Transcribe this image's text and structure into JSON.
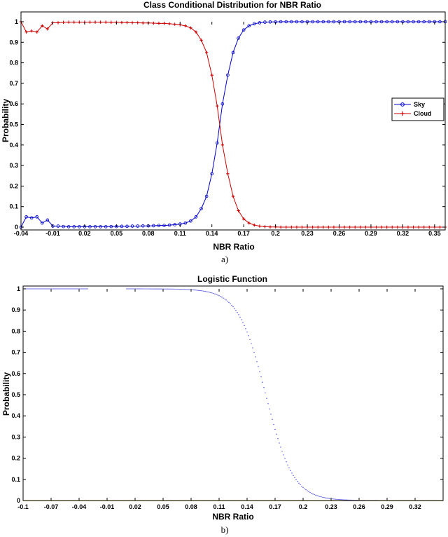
{
  "chart_data": [
    {
      "type": "line",
      "title": "Class Conditional Distribution for NBR Ratio",
      "xlabel": "NBR Ratio",
      "ylabel": "Probability",
      "caption": "a)",
      "xlim": [
        -0.04,
        0.36
      ],
      "ylim": [
        0,
        1
      ],
      "xticks": [
        -0.04,
        -0.01,
        0.02,
        0.05,
        0.08,
        0.11,
        0.14,
        0.17,
        0.2,
        0.23,
        0.26,
        0.29,
        0.32,
        0.35
      ],
      "xtick_labels": [
        "-0.04",
        "-0.01",
        "0.02",
        "0.05",
        "0.08",
        "0.11",
        "0.14",
        "0.17",
        "0.2",
        "0.23",
        "0.26",
        "0.29",
        "0.32",
        "0.35"
      ],
      "yticks": [
        0,
        0.1,
        0.2,
        0.3,
        0.4,
        0.5,
        0.6,
        0.7,
        0.8,
        0.9,
        1
      ],
      "ytick_labels": [
        "0",
        "0.1",
        "0.2",
        "0.3",
        "0.4",
        "0.5",
        "0.6",
        "0.7",
        "0.8",
        "0.9",
        "1"
      ],
      "grid": false,
      "legend_position": "right",
      "series": [
        {
          "name": "Sky",
          "color": "#0000cc",
          "marker": "circle",
          "x": [
            -0.04,
            -0.035,
            -0.03,
            -0.025,
            -0.02,
            -0.015,
            -0.01,
            -0.005,
            0,
            0.005,
            0.01,
            0.015,
            0.02,
            0.025,
            0.03,
            0.035,
            0.04,
            0.045,
            0.05,
            0.055,
            0.06,
            0.065,
            0.07,
            0.075,
            0.08,
            0.085,
            0.09,
            0.095,
            0.1,
            0.105,
            0.11,
            0.115,
            0.12,
            0.125,
            0.13,
            0.135,
            0.14,
            0.145,
            0.15,
            0.155,
            0.16,
            0.165,
            0.17,
            0.175,
            0.18,
            0.185,
            0.19,
            0.195,
            0.2,
            0.205,
            0.21,
            0.215,
            0.22,
            0.225,
            0.23,
            0.235,
            0.24,
            0.245,
            0.25,
            0.255,
            0.26,
            0.265,
            0.27,
            0.275,
            0.28,
            0.285,
            0.29,
            0.295,
            0.3,
            0.305,
            0.31,
            0.315,
            0.32,
            0.325,
            0.33,
            0.335,
            0.34,
            0.345,
            0.35,
            0.355,
            0.36
          ],
          "y": [
            0.0,
            0.05,
            0.045,
            0.05,
            0.02,
            0.035,
            0.005,
            0.005,
            0.003,
            0.002,
            0.002,
            0.002,
            0.002,
            0.002,
            0.002,
            0.002,
            0.002,
            0.003,
            0.003,
            0.004,
            0.004,
            0.005,
            0.005,
            0.006,
            0.006,
            0.007,
            0.008,
            0.008,
            0.01,
            0.012,
            0.015,
            0.02,
            0.03,
            0.05,
            0.09,
            0.15,
            0.26,
            0.41,
            0.6,
            0.74,
            0.85,
            0.92,
            0.96,
            0.98,
            0.99,
            0.995,
            0.998,
            0.999,
            0.999,
            1,
            1,
            1,
            1,
            1,
            1,
            1,
            1,
            1,
            1,
            1,
            1,
            1,
            1,
            1,
            1,
            1,
            1,
            1,
            1,
            1,
            1,
            1,
            1,
            1,
            1,
            1,
            1,
            1,
            1,
            1,
            1
          ]
        },
        {
          "name": "Cloud",
          "color": "#cc0000",
          "marker": "plus",
          "x": [
            -0.04,
            -0.035,
            -0.03,
            -0.025,
            -0.02,
            -0.015,
            -0.01,
            -0.005,
            0,
            0.005,
            0.01,
            0.015,
            0.02,
            0.025,
            0.03,
            0.035,
            0.04,
            0.045,
            0.05,
            0.055,
            0.06,
            0.065,
            0.07,
            0.075,
            0.08,
            0.085,
            0.09,
            0.095,
            0.1,
            0.105,
            0.11,
            0.115,
            0.12,
            0.125,
            0.13,
            0.135,
            0.14,
            0.145,
            0.15,
            0.155,
            0.16,
            0.165,
            0.17,
            0.175,
            0.18,
            0.185,
            0.19,
            0.195,
            0.2,
            0.205,
            0.21,
            0.215,
            0.22,
            0.225,
            0.23,
            0.235,
            0.24,
            0.245,
            0.25,
            0.255,
            0.26,
            0.265,
            0.27,
            0.275,
            0.28,
            0.285,
            0.29,
            0.295,
            0.3,
            0.305,
            0.31,
            0.315,
            0.32,
            0.325,
            0.33,
            0.335,
            0.34,
            0.345,
            0.35,
            0.355,
            0.36
          ],
          "y": [
            1.0,
            0.95,
            0.955,
            0.95,
            0.98,
            0.965,
            0.995,
            0.995,
            0.997,
            0.998,
            0.998,
            0.998,
            0.998,
            0.998,
            0.998,
            0.998,
            0.998,
            0.997,
            0.997,
            0.996,
            0.996,
            0.995,
            0.995,
            0.994,
            0.994,
            0.993,
            0.992,
            0.992,
            0.99,
            0.988,
            0.985,
            0.98,
            0.97,
            0.95,
            0.91,
            0.85,
            0.74,
            0.59,
            0.4,
            0.26,
            0.15,
            0.08,
            0.04,
            0.02,
            0.01,
            0.005,
            0.002,
            0.001,
            0.001,
            0,
            0,
            0,
            0,
            0,
            0,
            0,
            0,
            0,
            0,
            0,
            0,
            0,
            0,
            0,
            0,
            0,
            0,
            0,
            0,
            0,
            0,
            0,
            0,
            0,
            0,
            0,
            0,
            0,
            0,
            0,
            0
          ]
        }
      ]
    },
    {
      "type": "line",
      "title": "Logistic Function",
      "xlabel": "NBR Ratio",
      "ylabel": "Probability",
      "caption": "b)",
      "xlim": [
        -0.1,
        0.35
      ],
      "ylim": [
        0,
        1
      ],
      "xticks": [
        -0.1,
        -0.07,
        -0.04,
        -0.01,
        0.02,
        0.05,
        0.08,
        0.11,
        0.14,
        0.17,
        0.2,
        0.23,
        0.26,
        0.29,
        0.32
      ],
      "xtick_labels": [
        "-0.1",
        "-0.07",
        "-0.04",
        "-0.01",
        "0.02",
        "0.05",
        "0.08",
        "0.11",
        "0.14",
        "0.17",
        "0.2",
        "0.23",
        "0.26",
        "0.29",
        "0.32"
      ],
      "yticks": [
        0,
        0.1,
        0.2,
        0.3,
        0.4,
        0.5,
        0.6,
        0.7,
        0.8,
        0.9,
        1
      ],
      "ytick_labels": [
        "0",
        "0.1",
        "0.2",
        "0.3",
        "0.4",
        "0.5",
        "0.6",
        "0.7",
        "0.8",
        "0.9",
        "1"
      ],
      "grid": false,
      "logistic": {
        "midpoint": 0.16,
        "steepness": 68
      },
      "gaps": [
        [
          -0.03,
          0.01
        ]
      ],
      "baseline": {
        "y": 0,
        "color": "#d4b000"
      },
      "series": [
        {
          "color": "#0000cc",
          "marker": "dot"
        }
      ]
    }
  ]
}
